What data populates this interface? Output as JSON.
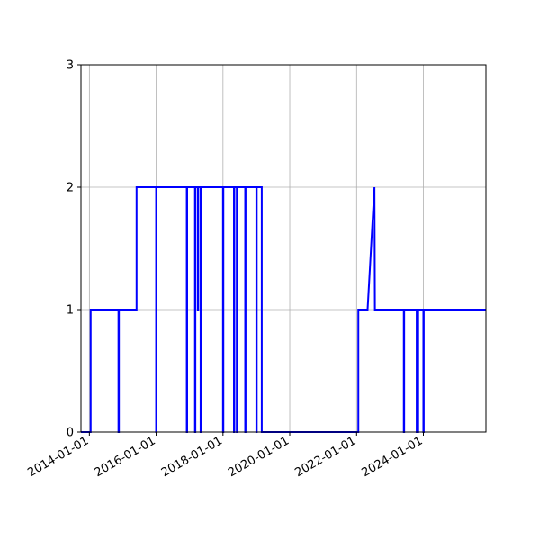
{
  "chart_data": {
    "type": "line",
    "title": "",
    "xlabel": "",
    "ylabel": "",
    "x_axis_type": "date",
    "xlim": [
      "2013-10-01",
      "2025-11-15"
    ],
    "ylim": [
      0,
      3
    ],
    "grid": true,
    "legend": "none",
    "x_tick_labels": [
      "2014-01-01",
      "2016-01-01",
      "2018-01-01",
      "2020-01-01",
      "2022-01-01",
      "2024-01-01"
    ],
    "y_tick_labels": [
      "0",
      "1",
      "2",
      "3"
    ],
    "line_color": "#0000ff",
    "series": [
      {
        "x": [
          "2013-10-01",
          "2014-01-15",
          "2014-01-15",
          "2014-11-15",
          "2014-11-15",
          "2014-11-20",
          "2014-11-20",
          "2015-06-01",
          "2015-06-01",
          "2016-01-01",
          "2016-01-01",
          "2016-01-05",
          "2016-01-05",
          "2016-12-01",
          "2016-12-01",
          "2016-12-05",
          "2016-12-05",
          "2017-03-01",
          "2017-03-01",
          "2017-03-05",
          "2017-03-05",
          "2017-04-01",
          "2017-04-01",
          "2017-04-05",
          "2017-04-05",
          "2017-05-01",
          "2017-05-01",
          "2017-05-05",
          "2017-05-05",
          "2018-01-01",
          "2018-01-01",
          "2018-01-05",
          "2018-01-05",
          "2018-05-01",
          "2018-05-01",
          "2018-05-05",
          "2018-05-05",
          "2018-06-01",
          "2018-06-01",
          "2018-06-05",
          "2018-06-05",
          "2018-09-01",
          "2018-09-01",
          "2018-09-05",
          "2018-09-05",
          "2019-01-01",
          "2019-01-01",
          "2019-01-05",
          "2019-01-05",
          "2019-03-01",
          "2019-03-01",
          "2022-01-20",
          "2022-01-20",
          "2022-05-01",
          "2022-07-15",
          "2022-07-20",
          "2023-06-01",
          "2023-06-01",
          "2023-06-05",
          "2023-06-05",
          "2023-10-20",
          "2023-10-20",
          "2023-11-05",
          "2023-11-05",
          "2024-01-01",
          "2024-01-01",
          "2024-01-05",
          "2024-01-05",
          "2025-11-15"
        ],
        "y": [
          0,
          0,
          1,
          1,
          0,
          0,
          1,
          1,
          2,
          2,
          0,
          0,
          2,
          2,
          0,
          0,
          2,
          2,
          0,
          0,
          2,
          2,
          1,
          1,
          2,
          2,
          0,
          0,
          2,
          2,
          0,
          0,
          2,
          2,
          0,
          0,
          2,
          2,
          0,
          0,
          2,
          2,
          0,
          0,
          2,
          2,
          0,
          0,
          2,
          2,
          0,
          0,
          1,
          1,
          2,
          1,
          1,
          0,
          0,
          1,
          1,
          0,
          0,
          1,
          1,
          0,
          0,
          1,
          1
        ]
      }
    ]
  }
}
